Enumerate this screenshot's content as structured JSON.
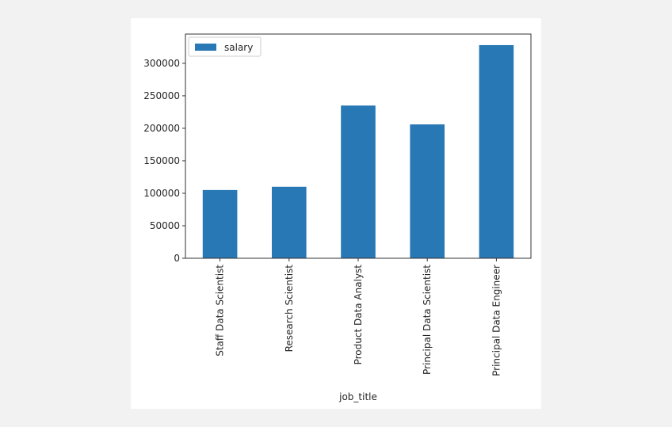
{
  "chart_data": {
    "type": "bar",
    "categories": [
      "Staff Data Scientist",
      "Research Scientist",
      "Product Data Analyst",
      "Principal Data Scientist",
      "Principal Data Engineer"
    ],
    "series": [
      {
        "name": "salary",
        "values": [
          105000,
          110000,
          235000,
          206000,
          328000
        ],
        "color": "#2878b5"
      }
    ],
    "xlabel": "job_title",
    "ylabel": "",
    "ylim": [
      0,
      345000
    ],
    "yticks": [
      0,
      50000,
      100000,
      150000,
      200000,
      250000,
      300000
    ],
    "grid": false,
    "legend": "top-left"
  }
}
